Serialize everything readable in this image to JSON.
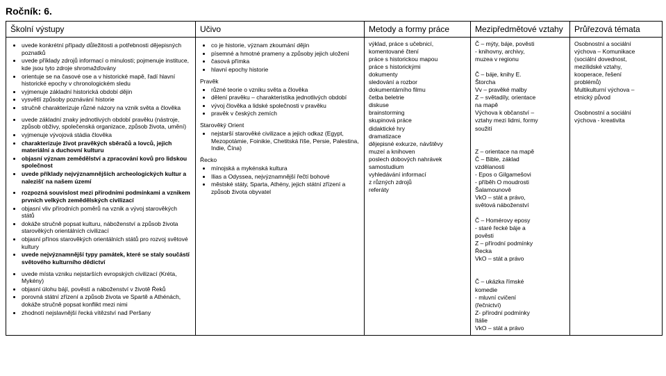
{
  "title": "Ročník: 6.",
  "headers": [
    "Školní výstupy",
    "Učivo",
    "Metody a formy práce",
    "Mezipředmětové vztahy",
    "Průřezová témata"
  ],
  "col1": {
    "block1": [
      "uvede konkrétní případy důležitosti a potřebnosti dějepisných poznatků",
      "uvede příklady zdrojů informací o minulosti; pojmenuje instituce, kde jsou tyto zdroje shromažďovány",
      "orientuje se na časové ose a v historické mapě, řadí hlavní historické epochy v chronologickém sledu",
      "vyjmenuje základní historická období dějin",
      "vysvětlí způsoby poznávání historie",
      "stručně charakterizuje různé názory na vznik světa a člověka"
    ],
    "block2": [
      "uvede základní znaky jednotlivých období pravěku (nástroje, způsob obživy, společenská organizace, způsob života, umění)",
      "vyjmenuje vývojová stádia člověka",
      "{b}charakterizuje život pravěkých sběračů a lovců, jejich materiální a duchovní kulturu",
      "{b}objasní význam zemědělství a zpracování kovů pro lidskou společnost",
      "{b}uvede příklady nejvýznamnějších archeologických kultur a nalezišť na našem území"
    ],
    "block3": [
      "{b}rozpozná souvislost mezi přírodními podmínkami a vznikem prvních velkých zemědělských civilizací",
      "objasní vliv přírodních poměrů na vznik a vývoj starověkých států",
      "dokáže stručně popsat kulturu, náboženství a způsob života starověkých orientálních civilizací",
      "objasní přínos starověkých orientálních států pro rozvoj světové kultury",
      "{b}uvede nejvýznamnější typy památek, které se staly součástí světového kulturního dědictví"
    ],
    "block4": [
      "uvede místa vzniku nejstarších evropských civilizací (Kréta, Mykény)",
      "objasní úlohu bájí, pověstí a náboženství v životě Řeků",
      "porovná státní zřízení a způsob života ve Spartě a Athénách, dokáže stručně popsat konflikt mezi nimi",
      "zhodnotí nejslavnější řecká vítězství nad Peršany"
    ]
  },
  "col2": {
    "block1": [
      "co je historie, význam zkoumání dějin",
      "písemné a hmotné prameny a způsoby jejich uložení",
      "časová přímka",
      "hlavní epochy historie"
    ],
    "h2": "Pravěk",
    "block2": [
      "různé teorie o vzniku světa a člověka",
      "dělení pravěku – charakteristika jednotlivých období",
      "vývoj člověka a lidské společnosti v pravěku",
      "pravěk v českých zemích"
    ],
    "h3": "Starověký Orient",
    "block3": [
      "nejstarší starověké civilizace a jejich odkaz (Egypt, Mezopotámie, Foinikie, Chetitská říše, Persie, Palestina, Indie, Čína)"
    ],
    "h4": "Řecko",
    "block4": [
      "mínojská a mykénská kultura",
      "Ilias a Odyssea, nejvýznamnější řečtí bohové",
      "městské státy, Sparta, Athény, jejich státní zřízení a způsob života obyvatel"
    ]
  },
  "col3": {
    "lines": [
      "výklad, práce s učebnicí,",
      "komentované čtení",
      "práce s historickou mapou",
      "práce s historickými",
      "dokumenty",
      "sledování a rozbor",
      "dokumentárního filmu",
      "četba beletrie",
      "diskuse",
      "brainstorming",
      "skupinová práce",
      "didaktické hry",
      "dramatizace",
      "dějepisné exkurze, návštěvy",
      "muzeí a knihoven",
      "poslech dobových nahrávek",
      "samostudium",
      "vyhledávání informací",
      "z různých zdrojů",
      "referáty"
    ]
  },
  "col4": {
    "lines": [
      "Č – mýty, báje, pověsti",
      "  - knihovny, archivy,",
      "    muzea v regionu",
      "",
      "Č – báje, knihy E.",
      "Štorcha",
      "Vv – pravěké malby",
      "Z – světadíly, orientace",
      "na mapě",
      "Výchova k občanství –",
      "vztahy mezi lidmi, formy",
      "soužití",
      "",
      "",
      "Z – orientace na mapě",
      "Č – Bible, základ",
      "vzdělanosti",
      "- Epos o Gilgamešovi",
      "- příběh O moudrosti",
      "Šalamounově",
      "VkO – stát a právo,",
      "světová náboženství",
      "",
      "Č – Homérovy eposy",
      " - staré řecké báje a",
      "   pověsti",
      "Z – přírodní podmínky",
      "Řecka",
      "VkO – stát a právo",
      "",
      "",
      "Č – ukázka římské",
      "komedie",
      " - mluvní cvičení",
      "(řečnictví)",
      "Z- přírodní podmínky",
      "Itálie",
      "VkO – stát a právo"
    ]
  },
  "col5": {
    "lines": [
      "Osobnostní a sociální",
      "výchova – Komunikace",
      "(sociální dovednost,",
      "mezilidské vztahy,",
      "kooperace, řešení",
      "problémů)",
      "Multikulturní výchova –",
      "etnický původ",
      "",
      "Osobnostní a sociální",
      "výchova - kreativita"
    ]
  }
}
